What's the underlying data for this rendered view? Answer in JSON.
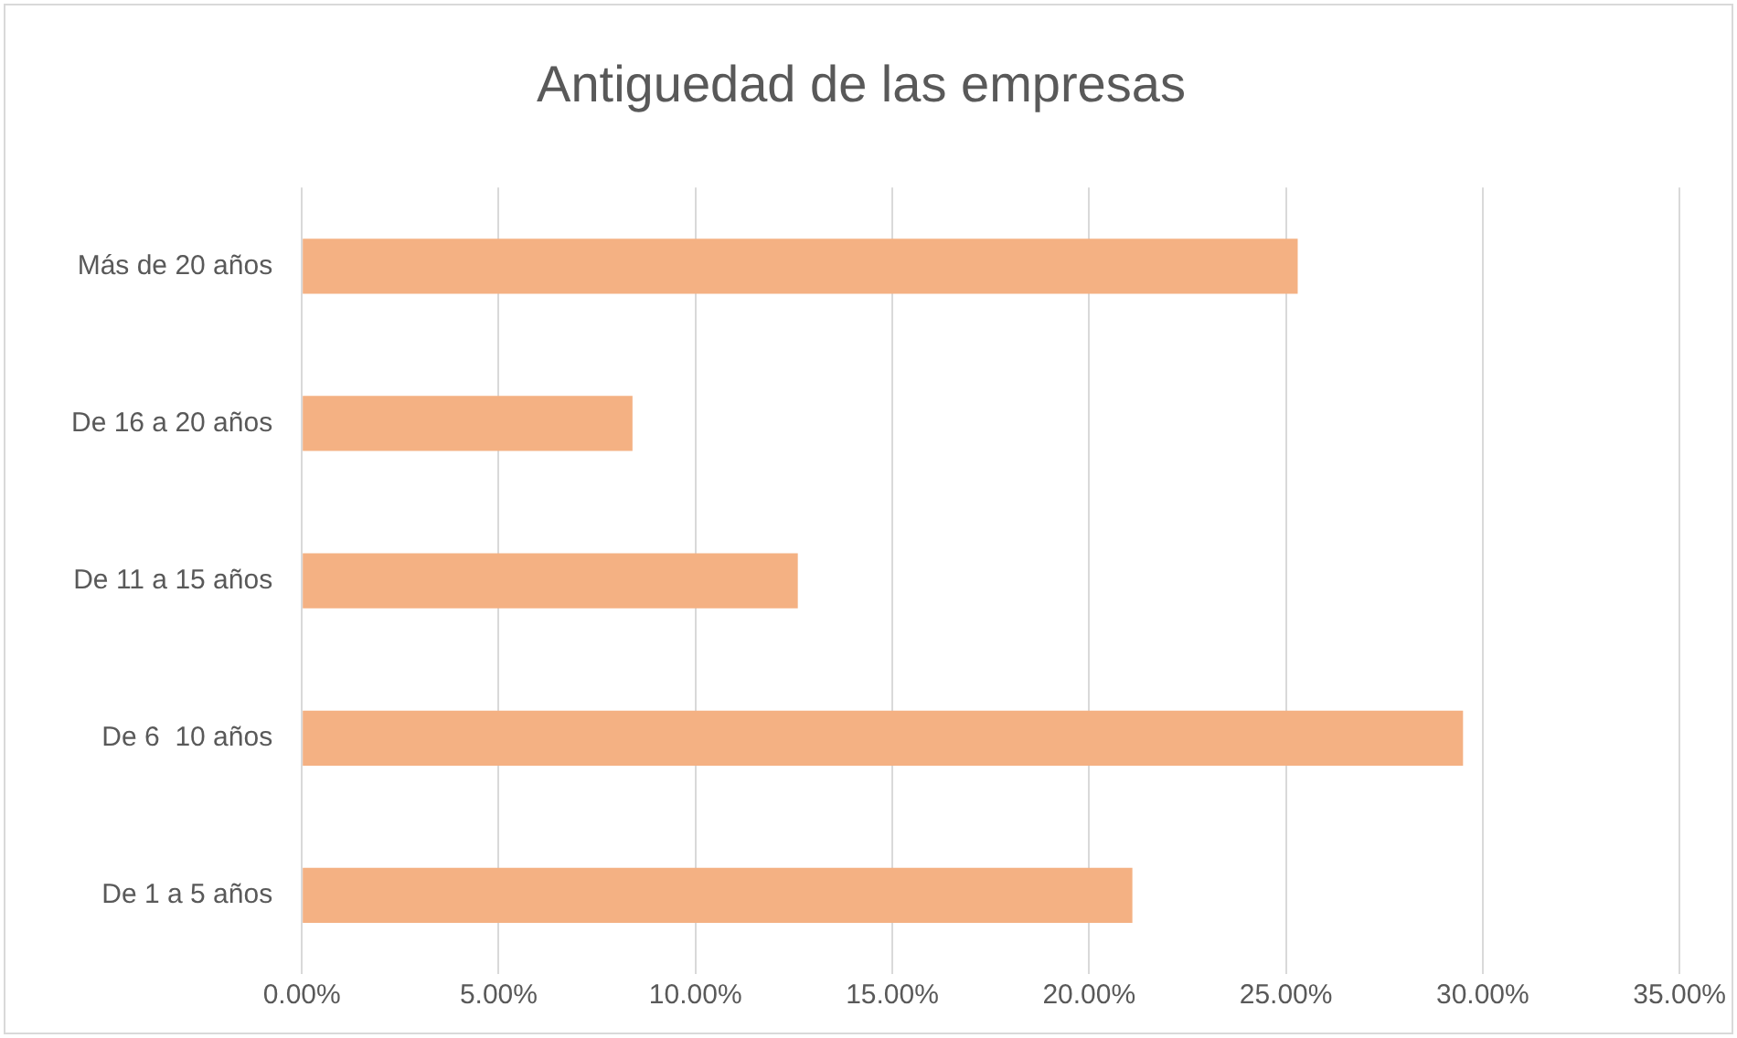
{
  "chart_data": {
    "type": "bar",
    "orientation": "horizontal",
    "title": "Antiguedad de las empresas",
    "categories": [
      "Más de 20 años",
      "De 16 a 20 años",
      "De 11 a 15 años",
      "De 6  10 años",
      "De 1 a 5 años"
    ],
    "values": [
      25.3,
      8.4,
      12.6,
      29.5,
      21.1
    ],
    "color": "#f4b183",
    "xlim": [
      0,
      35
    ],
    "xticks": [
      {
        "value": 0,
        "label": "0.00%"
      },
      {
        "value": 5,
        "label": "5.00%"
      },
      {
        "value": 10,
        "label": "10.00%"
      },
      {
        "value": 15,
        "label": "15.00%"
      },
      {
        "value": 20,
        "label": "20.00%"
      },
      {
        "value": 25,
        "label": "25.00%"
      },
      {
        "value": 30,
        "label": "30.00%"
      },
      {
        "value": 35,
        "label": "35.00%"
      }
    ],
    "grid": "x",
    "legend": false
  }
}
